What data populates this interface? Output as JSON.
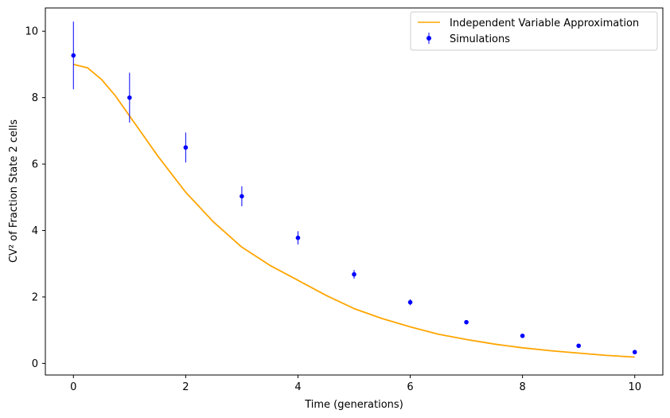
{
  "chart_data": {
    "type": "scatter",
    "xlabel": "Time (generations)",
    "ylabel": "CV² of Fraction State 2 cells",
    "xlim": [
      -0.5,
      10.5
    ],
    "ylim": [
      -0.35,
      10.7
    ],
    "xticks": [
      0,
      2,
      4,
      6,
      8,
      10
    ],
    "yticks": [
      0,
      2,
      4,
      6,
      8,
      10
    ],
    "grid": false,
    "legend_position": "top-right",
    "series": [
      {
        "name": "Independent Variable Approximation",
        "kind": "line",
        "color": "#ffa500",
        "x": [
          0,
          0.25,
          0.5,
          0.75,
          1,
          1.25,
          1.5,
          1.75,
          2,
          2.5,
          3,
          3.5,
          4,
          4.5,
          5,
          5.5,
          6,
          6.5,
          7,
          7.5,
          8,
          8.5,
          9,
          9.5,
          10
        ],
        "y": [
          9.0,
          8.9,
          8.55,
          8.05,
          7.45,
          6.85,
          6.25,
          5.7,
          5.15,
          4.25,
          3.5,
          2.95,
          2.5,
          2.05,
          1.65,
          1.35,
          1.1,
          0.88,
          0.72,
          0.58,
          0.47,
          0.38,
          0.31,
          0.24,
          0.19
        ]
      },
      {
        "name": "Simulations",
        "kind": "errorbar",
        "color": "#0000ff",
        "x": [
          0,
          1,
          2,
          3,
          4,
          5,
          6,
          7,
          8,
          9,
          10
        ],
        "y": [
          9.27,
          8.0,
          6.5,
          5.03,
          3.78,
          2.68,
          1.84,
          1.24,
          0.83,
          0.53,
          0.34
        ],
        "yerr": [
          1.02,
          0.75,
          0.45,
          0.3,
          0.2,
          0.13,
          0.09,
          0.06,
          0.04,
          0.03,
          0.02
        ]
      }
    ]
  }
}
